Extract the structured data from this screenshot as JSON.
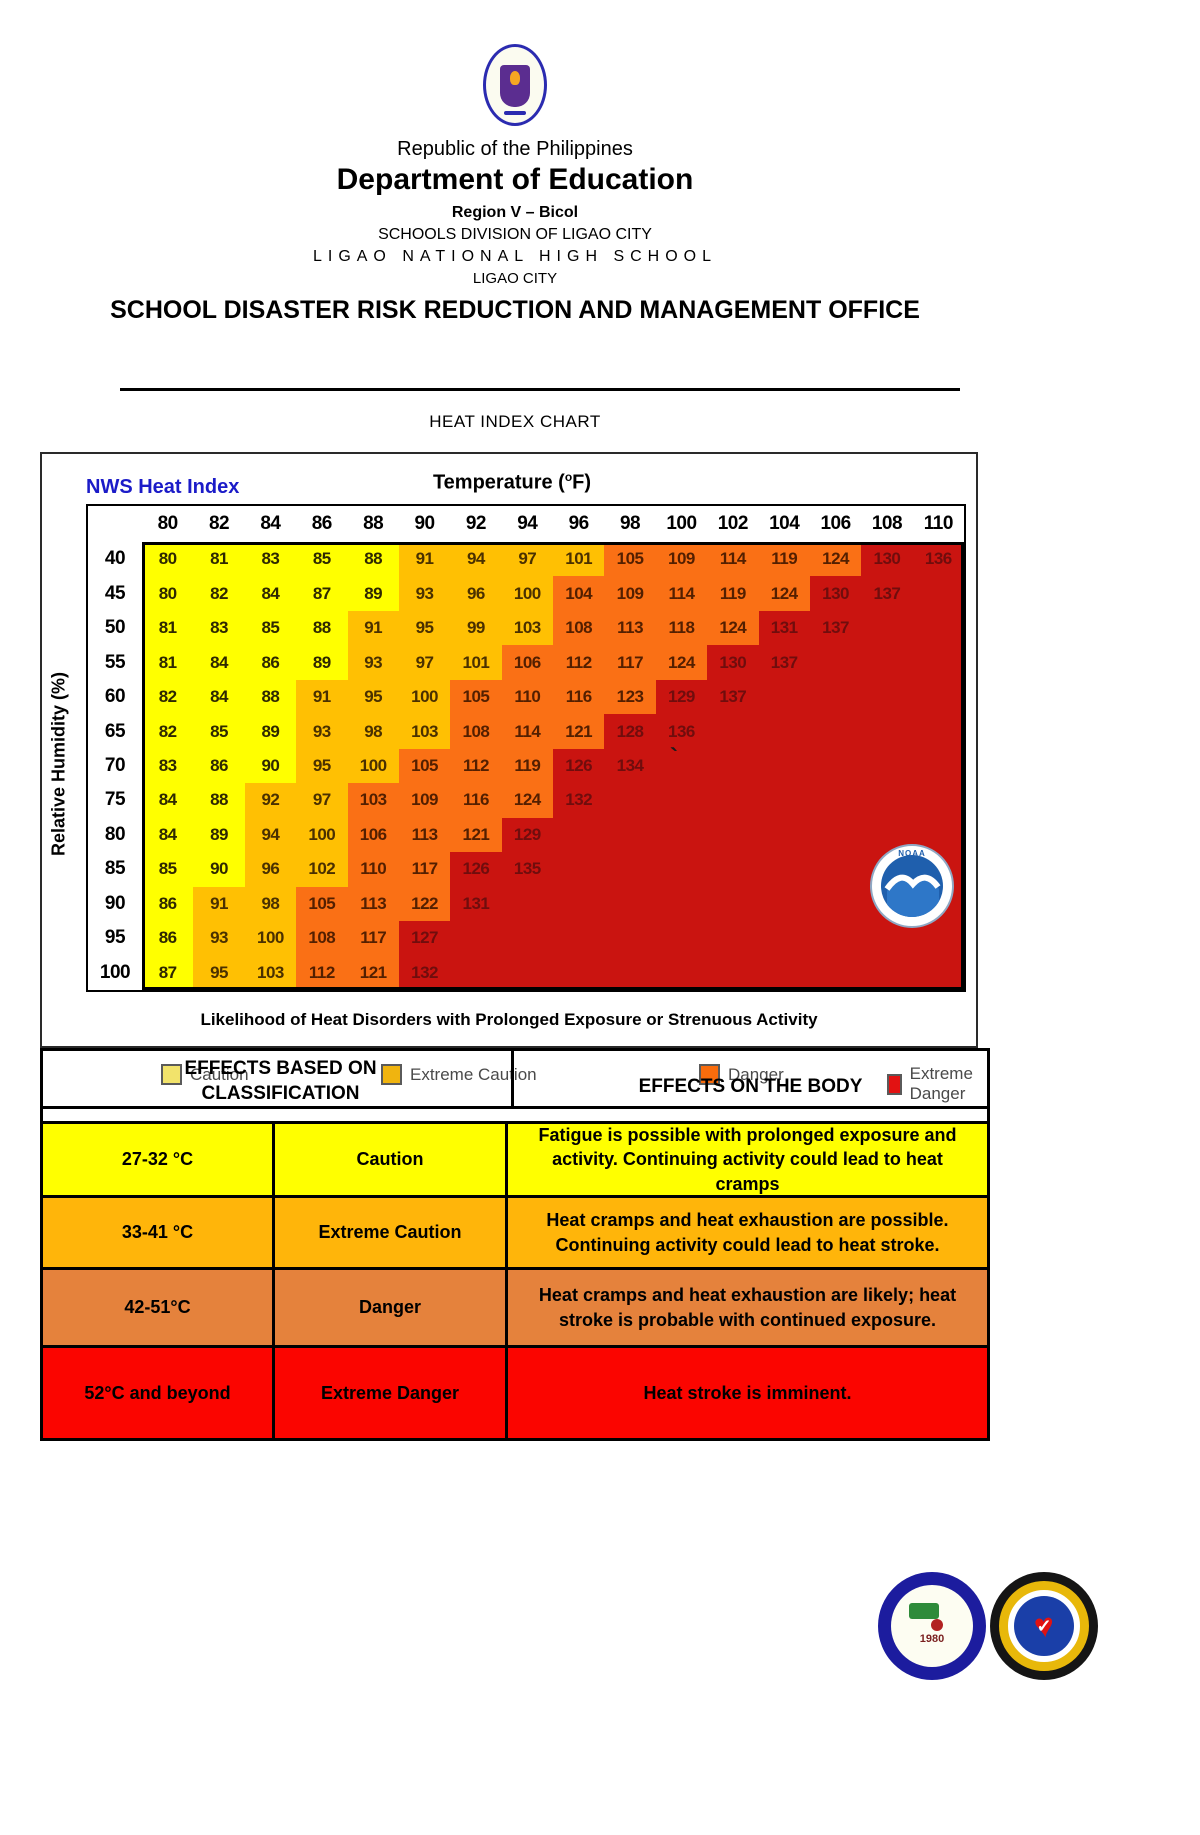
{
  "header": {
    "republic": "Republic of the Philippines",
    "department": "Department of Education",
    "region": "Region V – Bicol",
    "division": "SCHOOLS DIVISION OF LIGAO CITY",
    "school": "LIGAO NATIONAL HIGH SCHOOL",
    "city": "LIGAO CITY",
    "office": "SCHOOL DISASTER RISK REDUCTION AND MANAGEMENT OFFICE"
  },
  "page_title": "HEAT INDEX CHART",
  "chart_data": {
    "type": "heatmap",
    "title": "NWS Heat Index",
    "xlabel": {
      "pre": "Temperature (",
      "sup": "o",
      "post": "F)"
    },
    "ylabel": "Relative Humidity (%)",
    "footer": "Likelihood of Heat Disorders with Prolonged Exposure or Strenuous Activity",
    "noaa_label": "NOAA",
    "artifact_mark": "`",
    "temperatures": [
      80,
      82,
      84,
      86,
      88,
      90,
      92,
      94,
      96,
      98,
      100,
      102,
      104,
      106,
      108,
      110
    ],
    "humidity": [
      40,
      45,
      50,
      55,
      60,
      65,
      70,
      75,
      80,
      85,
      90,
      95,
      100
    ],
    "rows": [
      {
        "rh": "40",
        "values": [
          80,
          81,
          83,
          85,
          88,
          91,
          94,
          97,
          101,
          105,
          109,
          114,
          119,
          124,
          130,
          136
        ],
        "classes": "ccccceeeedddddxx"
      },
      {
        "rh": "45",
        "values": [
          80,
          82,
          84,
          87,
          89,
          93,
          96,
          100,
          104,
          109,
          114,
          119,
          124,
          130,
          137
        ],
        "classes": "ccccceeedddddxx"
      },
      {
        "rh": "50",
        "values": [
          81,
          83,
          85,
          88,
          91,
          95,
          99,
          103,
          108,
          113,
          118,
          124,
          131,
          137
        ],
        "classes": "cccceeeeddddxx"
      },
      {
        "rh": "55",
        "values": [
          81,
          84,
          86,
          89,
          93,
          97,
          101,
          106,
          112,
          117,
          124,
          130,
          137
        ],
        "classes": "cccceeeddddxx"
      },
      {
        "rh": "60",
        "values": [
          82,
          84,
          88,
          91,
          95,
          100,
          105,
          110,
          116,
          123,
          129,
          137
        ],
        "classes": "ccceeeddddxx"
      },
      {
        "rh": "65",
        "values": [
          82,
          85,
          89,
          93,
          98,
          103,
          108,
          114,
          121,
          128,
          136
        ],
        "classes": "ccceeedddxx"
      },
      {
        "rh": "70",
        "values": [
          83,
          86,
          90,
          95,
          100,
          105,
          112,
          119,
          126,
          134
        ],
        "classes": "ccceedddxx"
      },
      {
        "rh": "75",
        "values": [
          84,
          88,
          92,
          97,
          103,
          109,
          116,
          124,
          132
        ],
        "classes": "cceeddddx"
      },
      {
        "rh": "80",
        "values": [
          84,
          89,
          94,
          100,
          106,
          113,
          121,
          129
        ],
        "classes": "cceedddx"
      },
      {
        "rh": "85",
        "values": [
          85,
          90,
          96,
          102,
          110,
          117,
          126,
          135
        ],
        "classes": "cceeddxx"
      },
      {
        "rh": "90",
        "values": [
          86,
          91,
          98,
          105,
          113,
          122,
          131
        ],
        "classes": "ceedddx"
      },
      {
        "rh": "95",
        "values": [
          86,
          93,
          100,
          108,
          117,
          127
        ],
        "classes": "ceeddx"
      },
      {
        "rh": "100",
        "values": [
          87,
          95,
          103,
          112,
          121,
          132
        ],
        "classes": "ceeddx"
      }
    ],
    "palette": {
      "caution": {
        "bg": "#FFFF00",
        "text": "#2E2800"
      },
      "extreme_caution": {
        "bg": "#FFC003",
        "text": "#4A3000"
      },
      "danger": {
        "bg": "#FA7015",
        "text": "#531F00"
      },
      "extreme_danger": {
        "bg": "#CA1410",
        "text": "#700D0D"
      }
    },
    "legend": [
      {
        "label": "Caution",
        "color": "#F2E36B"
      },
      {
        "label": "Extreme Caution",
        "color": "#F0B40F"
      },
      {
        "label": "Danger",
        "color": "#F96C0C"
      },
      {
        "label": "Extreme Danger",
        "color": "#E21212"
      }
    ],
    "legend_position": "bottom",
    "grid": false
  },
  "effects_table": {
    "header_left": "EFFECTS BASED ON CLASSIFICATION",
    "header_right": "EFFECTS ON THE BODY",
    "rows": [
      {
        "range": "27-32 °C",
        "classification": "Caution",
        "effect": "Fatigue is possible with prolonged exposure and activity. Continuing activity could lead to heat cramps",
        "color": "#FFFF00"
      },
      {
        "range": "33-41 °C",
        "classification": "Extreme Caution",
        "effect": "Heat cramps and heat exhaustion are possible. Continuing activity could lead to heat stroke.",
        "color": "#FFB50A"
      },
      {
        "range": "42-51°C",
        "classification": "Danger",
        "effect": "Heat cramps and heat exhaustion are likely; heat stroke is probable with continued exposure.",
        "color": "#E5823C"
      },
      {
        "range": "52°C and beyond",
        "classification": "Extreme Danger",
        "effect": "Heat stroke is imminent.",
        "color": "#FB0500"
      }
    ]
  },
  "logos": {
    "lnhs_year": "1980",
    "heart_glyph": "♥",
    "check_glyph": "✓"
  }
}
